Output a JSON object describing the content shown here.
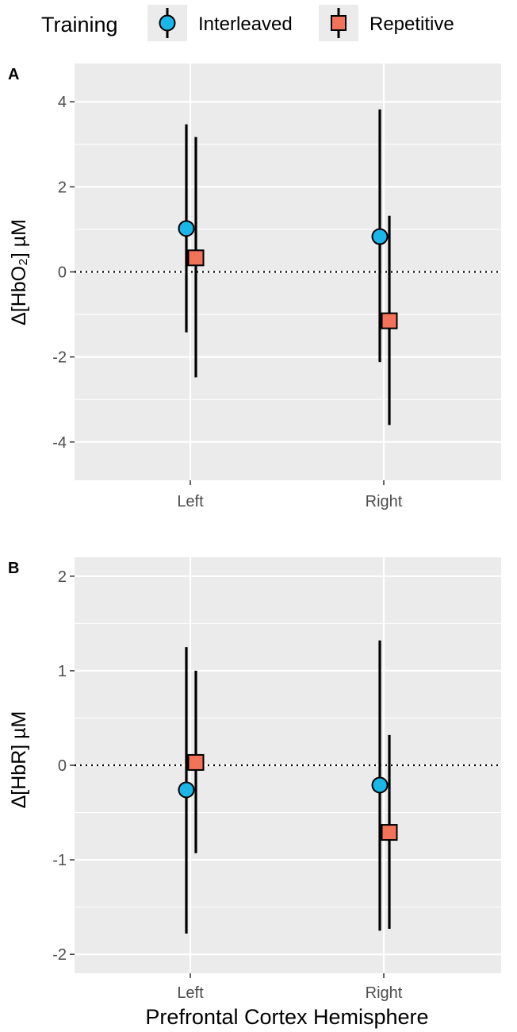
{
  "legend": {
    "title": "Training",
    "placement": "top",
    "entries": [
      {
        "label": "Interleaved",
        "shape": "circle",
        "color": "#1ab6e8"
      },
      {
        "label": "Repetitive",
        "shape": "square",
        "color": "#f3735a"
      }
    ]
  },
  "xlabel": "Prefrontal Cortex Hemisphere",
  "colors": {
    "panel_background": "#ebebeb",
    "gridline": "#ffffff",
    "errorbar": "#000000",
    "interleaved": "#1ab6e8",
    "repetitive": "#f3735a"
  },
  "chart_data": [
    {
      "type": "scatter",
      "panel": "A",
      "ylabel": "Δ[HbO₂] µM",
      "categories": [
        "Left",
        "Right"
      ],
      "ylim": [
        -4.9,
        4.9
      ],
      "yticks": [
        -4,
        -2,
        0,
        2,
        4
      ],
      "ytick_labels": [
        "-4",
        "-2",
        "0",
        "2",
        "4"
      ],
      "grid": true,
      "reference_line": 0,
      "series": [
        {
          "name": "Interleaved",
          "values": [
            1.02,
            0.83
          ],
          "lower": [
            -1.42,
            -2.12
          ],
          "upper": [
            3.47,
            3.82
          ]
        },
        {
          "name": "Repetitive",
          "values": [
            0.33,
            -1.15
          ],
          "lower": [
            -2.48,
            -3.6
          ],
          "upper": [
            3.17,
            1.32
          ]
        }
      ]
    },
    {
      "type": "scatter",
      "panel": "B",
      "ylabel": "Δ[HbR] µM",
      "categories": [
        "Left",
        "Right"
      ],
      "ylim": [
        -2.2,
        2.2
      ],
      "yticks": [
        -2,
        -1,
        0,
        1,
        2
      ],
      "ytick_labels": [
        "-2",
        "-1",
        "0",
        "1",
        "2"
      ],
      "grid": true,
      "reference_line": 0,
      "series": [
        {
          "name": "Interleaved",
          "values": [
            -0.26,
            -0.21
          ],
          "lower": [
            -1.78,
            -1.75
          ],
          "upper": [
            1.25,
            1.32
          ]
        },
        {
          "name": "Repetitive",
          "values": [
            0.03,
            -0.71
          ],
          "lower": [
            -0.93,
            -1.73
          ],
          "upper": [
            1.0,
            0.32
          ]
        }
      ]
    }
  ]
}
